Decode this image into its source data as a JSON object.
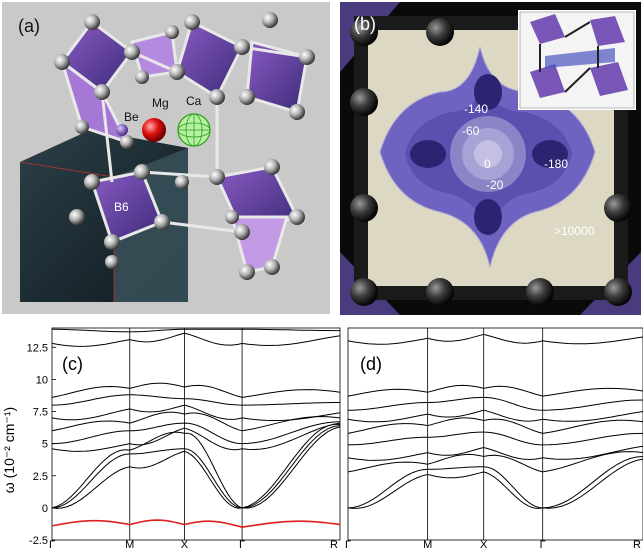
{
  "panel_a": {
    "label": "(a)",
    "atoms": [
      "Be",
      "Mg",
      "Ca",
      "B6"
    ]
  },
  "panel_b": {
    "label": "(b)",
    "contours": [
      "-140",
      "-60",
      "0",
      "-20",
      "-180",
      ">10000"
    ]
  },
  "panel_c": {
    "label": "(c)"
  },
  "panel_d": {
    "label": "(d)"
  },
  "chart_data": [
    {
      "type": "line",
      "panel": "(c)",
      "ylabel": "ω (10⁻² cm⁻¹)",
      "ylim": [
        -2.5,
        14
      ],
      "yticks": [
        "12.5",
        "10",
        "7.5",
        "5",
        "2.5",
        "0",
        "-2.5"
      ],
      "xticks": [
        "Γ",
        "M",
        "X",
        "Γ",
        "R"
      ],
      "series": [
        {
          "values": [
            0,
            3.2,
            4.4,
            0,
            6.3
          ]
        },
        {
          "values": [
            0,
            4.2,
            4.6,
            0,
            6.4
          ]
        },
        {
          "values": [
            0,
            4.5,
            5.8,
            0,
            6.5
          ]
        },
        {
          "values": [
            4.6,
            5.0,
            6.2,
            4.6,
            6.6
          ]
        },
        {
          "values": [
            5.0,
            6.0,
            6.6,
            5.0,
            6.7
          ]
        },
        {
          "values": [
            6.0,
            6.6,
            7.3,
            6.0,
            7.0
          ]
        },
        {
          "values": [
            7.0,
            7.7,
            8.0,
            7.0,
            7.4
          ]
        },
        {
          "values": [
            8.0,
            8.8,
            8.5,
            8.0,
            8.2
          ]
        },
        {
          "values": [
            8.6,
            9.3,
            9.4,
            8.6,
            9.0
          ]
        },
        {
          "values": [
            12.8,
            13.1,
            13.6,
            12.8,
            13.4
          ]
        },
        {
          "values": [
            13.9,
            13.7,
            13.9,
            13.9,
            13.8
          ]
        },
        {
          "values": [
            -1.4,
            -1.3,
            -1.3,
            -1.5,
            -1.3
          ],
          "color": "#e02020"
        }
      ]
    },
    {
      "type": "line",
      "panel": "(d)",
      "xticks": [
        "Γ",
        "M",
        "X",
        "Γ",
        "R"
      ],
      "ylim": [
        -2.5,
        14
      ],
      "series": [
        {
          "values": [
            0,
            2.6,
            2.8,
            0,
            3.8
          ]
        },
        {
          "values": [
            0,
            3.0,
            3.2,
            0,
            4.0
          ]
        },
        {
          "values": [
            2.8,
            3.4,
            4.0,
            2.8,
            4.3
          ]
        },
        {
          "values": [
            3.9,
            4.3,
            4.7,
            3.9,
            4.8
          ]
        },
        {
          "values": [
            4.9,
            5.5,
            5.9,
            4.9,
            5.8
          ]
        },
        {
          "values": [
            5.8,
            6.4,
            6.8,
            5.8,
            6.7
          ]
        },
        {
          "values": [
            6.9,
            7.3,
            7.6,
            6.9,
            7.5
          ]
        },
        {
          "values": [
            7.6,
            8.2,
            8.6,
            7.6,
            8.4
          ]
        },
        {
          "values": [
            8.7,
            9.0,
            9.3,
            8.7,
            9.1
          ]
        },
        {
          "values": [
            13.0,
            13.2,
            13.5,
            13.0,
            13.3
          ]
        }
      ]
    }
  ]
}
